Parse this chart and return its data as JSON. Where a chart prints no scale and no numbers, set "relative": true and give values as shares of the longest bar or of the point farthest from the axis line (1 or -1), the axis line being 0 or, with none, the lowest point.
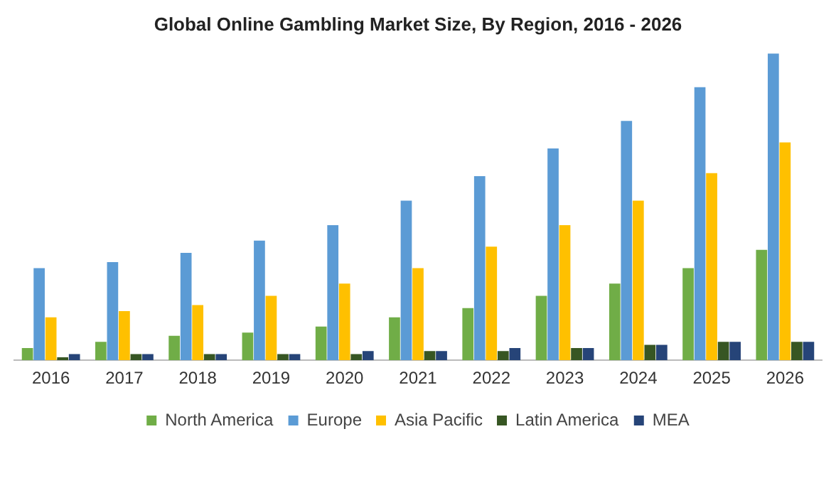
{
  "chart_data": {
    "type": "bar",
    "title": "Global Online Gambling Market Size, By Region, 2016 - 2026",
    "relative": true,
    "grid": false,
    "legend": "bottom",
    "categories": [
      "2016",
      "2017",
      "2018",
      "2019",
      "2020",
      "2021",
      "2022",
      "2023",
      "2024",
      "2025",
      "2026"
    ],
    "series": [
      {
        "name": "North America",
        "color": "#70ad47",
        "values": [
          0.04,
          0.06,
          0.08,
          0.09,
          0.11,
          0.14,
          0.17,
          0.21,
          0.25,
          0.3,
          0.36
        ]
      },
      {
        "name": "Europe",
        "color": "#5b9bd5",
        "values": [
          0.3,
          0.32,
          0.35,
          0.39,
          0.44,
          0.52,
          0.6,
          0.69,
          0.78,
          0.89,
          1
        ]
      },
      {
        "name": "Asia Pacific",
        "color": "#ffc000",
        "values": [
          0.14,
          0.16,
          0.18,
          0.21,
          0.25,
          0.3,
          0.37,
          0.44,
          0.52,
          0.61,
          0.71
        ]
      },
      {
        "name": "Latin America",
        "color": "#375623",
        "values": [
          0.01,
          0.02,
          0.02,
          0.02,
          0.02,
          0.03,
          0.03,
          0.04,
          0.05,
          0.06,
          0.06
        ]
      },
      {
        "name": "MEA",
        "color": "#264478",
        "values": [
          0.02,
          0.02,
          0.02,
          0.02,
          0.03,
          0.03,
          0.04,
          0.04,
          0.05,
          0.06,
          0.06
        ]
      }
    ]
  }
}
